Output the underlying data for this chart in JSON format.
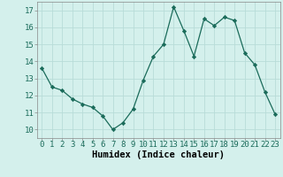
{
  "x": [
    0,
    1,
    2,
    3,
    4,
    5,
    6,
    7,
    8,
    9,
    10,
    11,
    12,
    13,
    14,
    15,
    16,
    17,
    18,
    19,
    20,
    21,
    22,
    23
  ],
  "y": [
    13.6,
    12.5,
    12.3,
    11.8,
    11.5,
    11.3,
    10.8,
    10.0,
    10.4,
    11.2,
    12.9,
    14.3,
    15.0,
    17.2,
    15.8,
    14.3,
    16.5,
    16.1,
    16.6,
    16.4,
    14.5,
    13.8,
    12.2,
    10.9
  ],
  "xlabel": "Humidex (Indice chaleur)",
  "ylim": [
    9.5,
    17.5
  ],
  "xlim": [
    -0.5,
    23.5
  ],
  "yticks": [
    10,
    11,
    12,
    13,
    14,
    15,
    16,
    17
  ],
  "xticks": [
    0,
    1,
    2,
    3,
    4,
    5,
    6,
    7,
    8,
    9,
    10,
    11,
    12,
    13,
    14,
    15,
    16,
    17,
    18,
    19,
    20,
    21,
    22,
    23
  ],
  "line_color": "#1a6b5a",
  "marker": "D",
  "marker_size": 2.2,
  "bg_color": "#d4f0ec",
  "grid_color": "#b8dcd8",
  "tick_label_fontsize": 6.5,
  "xlabel_fontsize": 7.5
}
